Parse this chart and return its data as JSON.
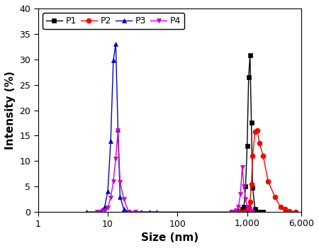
{
  "title": "",
  "xlabel": "Size (nm)",
  "ylabel": "Intensity (%)",
  "ylim": [
    0,
    40
  ],
  "xlim_log": [
    1,
    6000
  ],
  "xticks": [
    1,
    10,
    100,
    1000,
    6000
  ],
  "xticklabels": [
    "1",
    "10",
    "100",
    "1,000",
    "6,000"
  ],
  "yticks": [
    0,
    5,
    10,
    15,
    20,
    25,
    30,
    35,
    40
  ],
  "series": {
    "P1": {
      "color": "#000000",
      "marker": "s",
      "markersize": 5,
      "x": [
        600,
        700,
        750,
        800,
        850,
        900,
        950,
        1000,
        1050,
        1100,
        1150,
        1200,
        1300,
        1400,
        1500,
        1700
      ],
      "y": [
        0,
        0,
        0,
        0.2,
        0.5,
        1.0,
        5.0,
        13.0,
        26.5,
        30.8,
        17.5,
        4.7,
        0.5,
        0,
        0,
        0
      ]
    },
    "P2": {
      "color": "#ff0000",
      "marker": "o",
      "markersize": 5,
      "x": [
        700,
        800,
        900,
        1000,
        1050,
        1100,
        1150,
        1200,
        1300,
        1400,
        1500,
        1700,
        2000,
        2500,
        3000,
        3500,
        4000,
        5000
      ],
      "y": [
        0,
        0,
        0,
        0.3,
        1.0,
        2.0,
        5.5,
        11.0,
        15.8,
        16.0,
        13.5,
        11.0,
        6.0,
        3.0,
        1.0,
        0.5,
        0.2,
        0
      ]
    },
    "P3": {
      "color": "#0000cc",
      "marker": "^",
      "markersize": 5,
      "x": [
        5,
        7,
        8,
        9,
        10,
        11,
        12,
        13,
        14,
        15,
        17,
        20,
        25,
        30,
        40,
        50
      ],
      "y": [
        0,
        0,
        0.3,
        1.0,
        4.0,
        14.0,
        29.8,
        33.0,
        16.2,
        3.0,
        0.5,
        0,
        0,
        0,
        0,
        0
      ]
    },
    "P4": {
      "color": "#cc00cc",
      "marker": "v",
      "markersize": 5,
      "x": [
        7,
        8,
        9,
        10,
        11,
        12,
        13,
        14,
        15,
        17,
        20,
        25,
        600,
        700,
        750,
        800,
        850,
        900,
        950,
        1000,
        1100,
        1200
      ],
      "y": [
        0,
        0,
        0.3,
        0.8,
        2.8,
        6.0,
        10.5,
        16.0,
        5.8,
        2.5,
        0,
        0,
        0,
        0.3,
        1.0,
        3.5,
        8.8,
        5.0,
        2.5,
        1.0,
        0.3,
        0
      ]
    }
  },
  "legend_order": [
    "P1",
    "P2",
    "P3",
    "P4"
  ],
  "background_color": "#ffffff",
  "figsize": [
    4.5,
    3.5
  ],
  "dpi": 100
}
